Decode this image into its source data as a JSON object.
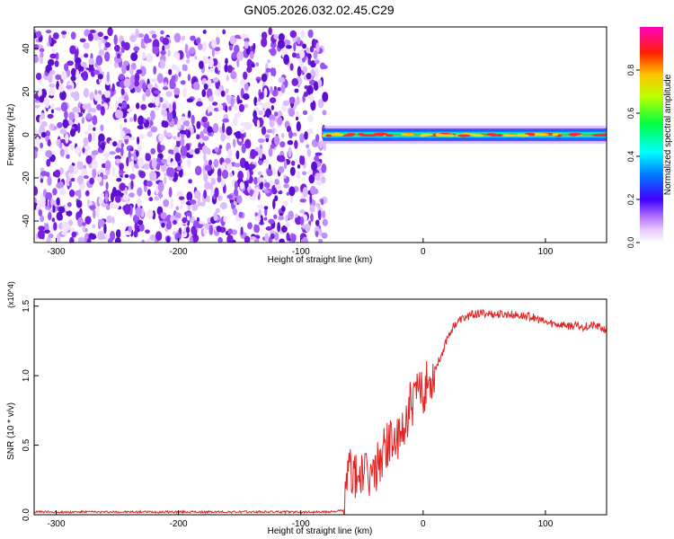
{
  "figure_title": "GN05.2026.032.02.45.C29",
  "colors": {
    "noise": "#7a1fe0",
    "snr_line": "#e32222",
    "frame": "#000000"
  },
  "chart_data": [
    {
      "type": "heatmap",
      "xlabel": "Height of straight line (km)",
      "ylabel": "Frequency (Hz)",
      "xlim": [
        -318,
        150
      ],
      "ylim": [
        -50,
        50
      ],
      "xticks": [
        -300,
        -200,
        -100,
        0,
        100
      ],
      "yticks": [
        -40,
        -20,
        0,
        20,
        40
      ],
      "colorbar": {
        "label": "Normalized spectral amplitude",
        "range": [
          0,
          1
        ],
        "ticks": [
          0.0,
          0.2,
          0.4,
          0.6,
          0.8
        ]
      },
      "regions": [
        {
          "kind": "noise",
          "x_range": [
            -318,
            -80
          ],
          "f_range": [
            -50,
            48
          ]
        },
        {
          "kind": "signal_band",
          "x_range": [
            -82,
            150
          ],
          "f_center": 0,
          "f_halfwidth": 3
        }
      ]
    },
    {
      "type": "line",
      "xlabel": "Height of straight line (km)",
      "ylabel": "SNR (10 * v/v)",
      "multiplier": "(x10^4)",
      "xlim": [
        -318,
        150
      ],
      "ylim": [
        0,
        1.55
      ],
      "xticks": [
        -300,
        -200,
        -100,
        0,
        100
      ],
      "yticks": [
        0.0,
        0.5,
        1.0,
        1.5
      ],
      "series": [
        {
          "x": [
            -318,
            -250,
            -150,
            -80,
            -65,
            -60,
            -55,
            -50,
            -45,
            -40,
            -35,
            -30,
            -25,
            -20,
            -15,
            -10,
            -5,
            0,
            5,
            10,
            15,
            20,
            25,
            30,
            40,
            50,
            60,
            70,
            80,
            90,
            100,
            110,
            120,
            130,
            140,
            150
          ],
          "y": [
            0.02,
            0.02,
            0.02,
            0.02,
            0.03,
            0.35,
            0.25,
            0.3,
            0.25,
            0.3,
            0.4,
            0.5,
            0.55,
            0.5,
            0.65,
            0.8,
            0.85,
            0.9,
            0.95,
            1.05,
            1.15,
            1.28,
            1.36,
            1.4,
            1.44,
            1.45,
            1.44,
            1.44,
            1.43,
            1.42,
            1.38,
            1.37,
            1.36,
            1.35,
            1.36,
            1.33
          ]
        }
      ]
    }
  ]
}
